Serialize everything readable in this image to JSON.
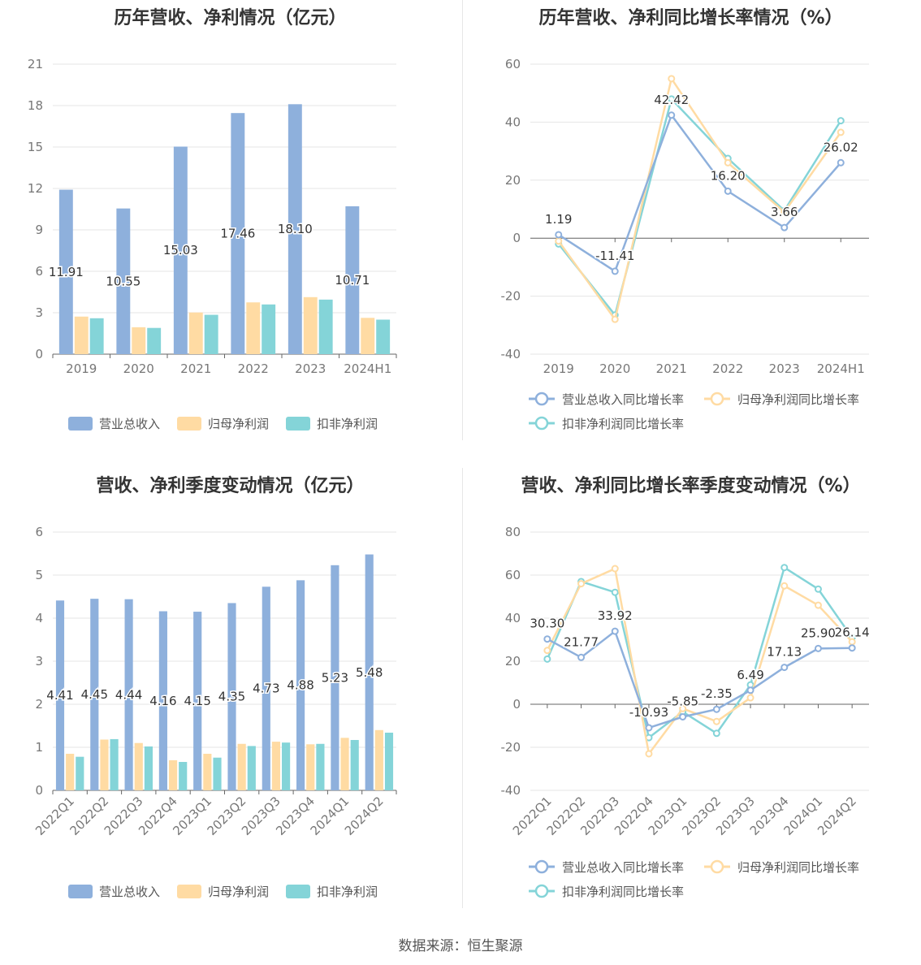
{
  "source": "数据来源：恒生聚源",
  "colors": {
    "revenue": "#8eb0dc",
    "net_profit": "#ffdba3",
    "deducted": "#84d4d8"
  },
  "chart_data": [
    {
      "id": "annual_bar",
      "type": "bar",
      "title": "历年营收、净利情况（亿元）",
      "categories": [
        "2019",
        "2020",
        "2021",
        "2022",
        "2023",
        "2024H1"
      ],
      "ylim": [
        0,
        21
      ],
      "yticks": [
        0,
        3,
        6,
        9,
        12,
        15,
        18,
        21
      ],
      "label_series": 0,
      "series": [
        {
          "name": "营业总收入",
          "color": "#8eb0dc",
          "values": [
            11.91,
            10.55,
            15.03,
            17.46,
            18.1,
            10.71
          ]
        },
        {
          "name": "归母净利润",
          "color": "#ffdba3",
          "values": [
            2.72,
            1.95,
            3.02,
            3.75,
            4.13,
            2.63
          ]
        },
        {
          "name": "扣非净利润",
          "color": "#84d4d8",
          "values": [
            2.6,
            1.9,
            2.85,
            3.6,
            3.95,
            2.5
          ]
        }
      ],
      "legend": "bottom"
    },
    {
      "id": "annual_line",
      "type": "line",
      "title": "历年营收、净利同比增长率情况（%）",
      "categories": [
        "2019",
        "2020",
        "2021",
        "2022",
        "2023",
        "2024H1"
      ],
      "ylim": [
        -40,
        60
      ],
      "yticks": [
        -40,
        -20,
        0,
        20,
        40,
        60
      ],
      "label_series": 0,
      "series": [
        {
          "name": "营业总收入同比增长率",
          "color": "#8eb0dc",
          "values": [
            1.19,
            -11.41,
            42.42,
            16.2,
            3.66,
            26.02
          ]
        },
        {
          "name": "归母净利润同比增长率",
          "color": "#ffdba3",
          "values": [
            -1.0,
            -28.0,
            55.0,
            26.0,
            9.0,
            36.5
          ]
        },
        {
          "name": "扣非净利润同比增长率",
          "color": "#84d4d8",
          "values": [
            -2.0,
            -26.5,
            48.0,
            27.5,
            9.5,
            40.5
          ]
        }
      ],
      "legend": "bottom"
    },
    {
      "id": "quarter_bar",
      "type": "bar",
      "title": "营收、净利季度变动情况（亿元）",
      "categories": [
        "2022Q1",
        "2022Q2",
        "2022Q3",
        "2022Q4",
        "2023Q1",
        "2023Q2",
        "2023Q3",
        "2023Q4",
        "2024Q1",
        "2024Q2"
      ],
      "ylim": [
        0,
        6
      ],
      "yticks": [
        0,
        1,
        2,
        3,
        4,
        5,
        6
      ],
      "label_series": 0,
      "series": [
        {
          "name": "营业总收入",
          "color": "#8eb0dc",
          "values": [
            4.41,
            4.45,
            4.44,
            4.16,
            4.15,
            4.35,
            4.73,
            4.88,
            5.23,
            5.48
          ]
        },
        {
          "name": "归母净利润",
          "color": "#ffdba3",
          "values": [
            0.85,
            1.18,
            1.1,
            0.7,
            0.85,
            1.08,
            1.13,
            1.07,
            1.22,
            1.4
          ]
        },
        {
          "name": "扣非净利润",
          "color": "#84d4d8",
          "values": [
            0.78,
            1.19,
            1.02,
            0.66,
            0.76,
            1.03,
            1.11,
            1.08,
            1.17,
            1.34
          ]
        }
      ],
      "legend": "bottom"
    },
    {
      "id": "quarter_line",
      "type": "line",
      "title": "营收、净利同比增长率季度变动情况（%）",
      "categories": [
        "2022Q1",
        "2022Q2",
        "2022Q3",
        "2022Q4",
        "2023Q1",
        "2023Q2",
        "2023Q3",
        "2023Q4",
        "2024Q1",
        "2024Q2"
      ],
      "ylim": [
        -40,
        80
      ],
      "yticks": [
        -40,
        -20,
        0,
        20,
        40,
        60,
        80
      ],
      "label_series": 0,
      "series": [
        {
          "name": "营业总收入同比增长率",
          "color": "#8eb0dc",
          "values": [
            30.3,
            21.77,
            33.92,
            -10.93,
            -5.85,
            -2.35,
            6.49,
            17.13,
            25.9,
            26.14
          ]
        },
        {
          "name": "归母净利润同比增长率",
          "color": "#ffdba3",
          "values": [
            25.0,
            56.0,
            63.0,
            -23.0,
            -2.0,
            -8.0,
            3.0,
            55.0,
            46.0,
            29.0
          ]
        },
        {
          "name": "扣非净利润同比增长率",
          "color": "#84d4d8",
          "values": [
            21.0,
            57.0,
            52.0,
            -15.5,
            -3.5,
            -13.5,
            9.0,
            63.5,
            53.5,
            31.0
          ]
        }
      ],
      "legend": "bottom"
    }
  ]
}
